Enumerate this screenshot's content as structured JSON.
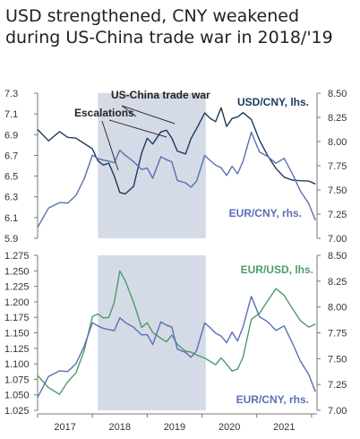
{
  "title": "USD strengthened,  CNY weakened during US-China trade war in 2018/'19",
  "chart_data": [
    {
      "type": "line",
      "shaded_region": {
        "label": "US-China trade war",
        "from": 2017.65,
        "to": 2019.62
      },
      "annotations": [
        {
          "text": "Escalations"
        },
        {
          "text": "US-China trade war"
        }
      ],
      "x_ticks": [
        "2017",
        "2018",
        "2019",
        "2020",
        "2021"
      ],
      "x_range": [
        2016.55,
        2021.65
      ],
      "y_left": {
        "range": [
          5.9,
          7.3
        ],
        "ticks": [
          "5.9",
          "6.1",
          "6.3",
          "6.5",
          "6.7",
          "6.9",
          "7.1",
          "7.3"
        ]
      },
      "y_right": {
        "range": [
          7.0,
          8.5
        ],
        "ticks": [
          "7.00",
          "7.25",
          "7.50",
          "7.75",
          "8.00",
          "8.25",
          "8.50"
        ]
      },
      "grid": false,
      "series": [
        {
          "name": "USD/CNY, lhs.",
          "axis": "left",
          "color": "#1b3a5c",
          "x": [
            2016.55,
            2016.75,
            2016.95,
            2017.1,
            2017.25,
            2017.4,
            2017.55,
            2017.65,
            2017.75,
            2017.85,
            2017.95,
            2018.05,
            2018.15,
            2018.3,
            2018.45,
            2018.55,
            2018.65,
            2018.8,
            2018.9,
            2019.0,
            2019.1,
            2019.25,
            2019.35,
            2019.45,
            2019.6,
            2019.7,
            2019.8,
            2019.9,
            2020.0,
            2020.1,
            2020.2,
            2020.3,
            2020.45,
            2020.6,
            2020.75,
            2020.9,
            2021.05,
            2021.2,
            2021.35,
            2021.5,
            2021.62
          ],
          "y": [
            6.95,
            6.85,
            6.93,
            6.88,
            6.87,
            6.82,
            6.77,
            6.65,
            6.6,
            6.62,
            6.5,
            6.34,
            6.32,
            6.4,
            6.72,
            6.87,
            6.82,
            6.93,
            6.95,
            6.87,
            6.75,
            6.72,
            6.87,
            6.95,
            7.1,
            7.05,
            7.02,
            7.15,
            6.97,
            7.05,
            7.08,
            7.12,
            7.05,
            6.85,
            6.7,
            6.58,
            6.5,
            6.47,
            6.45,
            6.45,
            6.42
          ]
        },
        {
          "name": "EUR/CNY, rhs.",
          "axis": "right",
          "color": "#5a6fb3",
          "x": [
            2016.55,
            2016.75,
            2016.95,
            2017.1,
            2017.25,
            2017.4,
            2017.55,
            2017.65,
            2017.75,
            2017.85,
            2017.95,
            2018.05,
            2018.15,
            2018.3,
            2018.45,
            2018.55,
            2018.65,
            2018.8,
            2018.9,
            2019.0,
            2019.1,
            2019.25,
            2019.35,
            2019.45,
            2019.6,
            2019.7,
            2019.8,
            2019.9,
            2020.0,
            2020.1,
            2020.2,
            2020.3,
            2020.45,
            2020.6,
            2020.75,
            2020.9,
            2021.05,
            2021.2,
            2021.35,
            2021.5,
            2021.62
          ],
          "y": [
            7.12,
            7.32,
            7.38,
            7.37,
            7.45,
            7.62,
            7.85,
            7.82,
            7.8,
            7.79,
            7.78,
            7.9,
            7.85,
            7.8,
            7.72,
            7.73,
            7.63,
            7.85,
            7.82,
            7.8,
            7.6,
            7.57,
            7.52,
            7.58,
            7.85,
            7.8,
            7.75,
            7.72,
            7.65,
            7.75,
            7.67,
            7.8,
            8.1,
            7.9,
            7.85,
            7.78,
            7.82,
            7.66,
            7.48,
            7.35,
            7.18
          ]
        }
      ]
    },
    {
      "type": "line",
      "shaded_region": {
        "from": 2017.65,
        "to": 2019.62
      },
      "x_ticks": [
        "2017",
        "2018",
        "2019",
        "2020",
        "2021"
      ],
      "x_range": [
        2016.55,
        2021.65
      ],
      "y_left": {
        "range": [
          1.025,
          1.275
        ],
        "ticks": [
          "1.025",
          "1.050",
          "1.075",
          "1.100",
          "1.125",
          "1.150",
          "1.175",
          "1.200",
          "1.225",
          "1.250",
          "1.275"
        ]
      },
      "y_right": {
        "range": [
          7.0,
          8.5
        ],
        "ticks": [
          "7.00",
          "7.25",
          "7.50",
          "7.75",
          "8.00",
          "8.25",
          "8.50"
        ]
      },
      "grid": false,
      "series": [
        {
          "name": "EUR/USD, lhs.",
          "axis": "left",
          "color": "#4e9a6b",
          "x": [
            2016.55,
            2016.75,
            2016.95,
            2017.1,
            2017.25,
            2017.4,
            2017.55,
            2017.65,
            2017.75,
            2017.85,
            2017.95,
            2018.05,
            2018.15,
            2018.3,
            2018.45,
            2018.55,
            2018.65,
            2018.8,
            2018.9,
            2019.0,
            2019.1,
            2019.25,
            2019.35,
            2019.45,
            2019.6,
            2019.7,
            2019.8,
            2019.9,
            2020.0,
            2020.1,
            2020.2,
            2020.3,
            2020.45,
            2020.6,
            2020.75,
            2020.9,
            2021.05,
            2021.2,
            2021.35,
            2021.5,
            2021.62
          ],
          "y": [
            1.08,
            1.06,
            1.05,
            1.07,
            1.085,
            1.12,
            1.175,
            1.18,
            1.175,
            1.175,
            1.2,
            1.25,
            1.235,
            1.2,
            1.16,
            1.165,
            1.15,
            1.14,
            1.135,
            1.145,
            1.13,
            1.12,
            1.12,
            1.115,
            1.11,
            1.105,
            1.1,
            1.11,
            1.1,
            1.09,
            1.09,
            1.11,
            1.17,
            1.18,
            1.2,
            1.22,
            1.21,
            1.19,
            1.17,
            1.16,
            1.165
          ]
        },
        {
          "name": "EUR/CNY, rhs.",
          "axis": "right",
          "color": "#5a6fb3",
          "x": [
            2016.55,
            2016.75,
            2016.95,
            2017.1,
            2017.25,
            2017.4,
            2017.55,
            2017.65,
            2017.75,
            2017.85,
            2017.95,
            2018.05,
            2018.15,
            2018.3,
            2018.45,
            2018.55,
            2018.65,
            2018.8,
            2018.9,
            2019.0,
            2019.1,
            2019.25,
            2019.35,
            2019.45,
            2019.6,
            2019.7,
            2019.8,
            2019.9,
            2020.0,
            2020.1,
            2020.2,
            2020.3,
            2020.45,
            2020.6,
            2020.75,
            2020.9,
            2021.05,
            2021.2,
            2021.35,
            2021.5,
            2021.62
          ],
          "y": [
            7.12,
            7.32,
            7.38,
            7.37,
            7.45,
            7.62,
            7.85,
            7.82,
            7.8,
            7.79,
            7.78,
            7.9,
            7.85,
            7.8,
            7.72,
            7.73,
            7.63,
            7.85,
            7.82,
            7.8,
            7.6,
            7.57,
            7.52,
            7.58,
            7.85,
            7.8,
            7.75,
            7.72,
            7.65,
            7.75,
            7.67,
            7.8,
            8.1,
            7.9,
            7.85,
            7.78,
            7.82,
            7.66,
            7.48,
            7.35,
            7.18
          ]
        }
      ]
    }
  ]
}
